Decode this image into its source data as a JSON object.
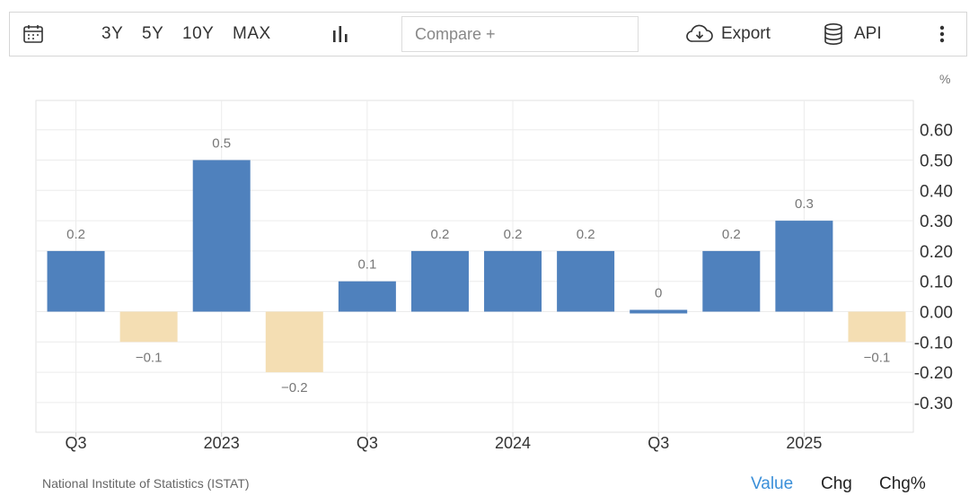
{
  "toolbar": {
    "ranges": [
      "3Y",
      "5Y",
      "10Y",
      "MAX"
    ],
    "compare_placeholder": "Compare +",
    "export_label": "Export",
    "api_label": "API",
    "icons": [
      "calendar-icon",
      "bar-chart-icon",
      "cloud-download-icon",
      "database-icon",
      "more-vertical-icon"
    ]
  },
  "unit_label": "%",
  "chart_data": {
    "type": "bar",
    "title": "",
    "xlabel": "",
    "ylabel": "%",
    "ylim": [
      -0.4,
      0.7
    ],
    "ytick_labels": [
      "0.60",
      "0.50",
      "0.40",
      "0.30",
      "0.20",
      "0.10",
      "0.00",
      "-0.10",
      "-0.20",
      "-0.30"
    ],
    "ytick_values": [
      0.6,
      0.5,
      0.4,
      0.3,
      0.2,
      0.1,
      0.0,
      -0.1,
      -0.2,
      -0.3
    ],
    "x_tick_labels": [
      "Q3",
      "2023",
      "Q3",
      "2024",
      "Q3",
      "2025"
    ],
    "x_tick_bar_index": [
      0,
      2,
      4,
      6,
      8,
      10
    ],
    "values": [
      0.2,
      -0.1,
      0.5,
      -0.2,
      0.1,
      0.2,
      0.2,
      0.2,
      0.0,
      0.2,
      0.3,
      -0.1
    ],
    "value_labels": [
      "0.2",
      "−0.1",
      "0.5",
      "−0.2",
      "0.1",
      "0.2",
      "0.2",
      "0.2",
      "0",
      "0.2",
      "0.3",
      "−0.1"
    ],
    "colors": {
      "positive": "#4f81bd",
      "negative": "#f4deb3",
      "grid": "#ececec",
      "label": "#777777"
    },
    "grid": true,
    "legend": "none"
  },
  "source_label": "National Institute of Statistics (ISTAT)",
  "view_tabs": [
    {
      "label": "Value",
      "active": true
    },
    {
      "label": "Chg",
      "active": false
    },
    {
      "label": "Chg%",
      "active": false
    }
  ]
}
